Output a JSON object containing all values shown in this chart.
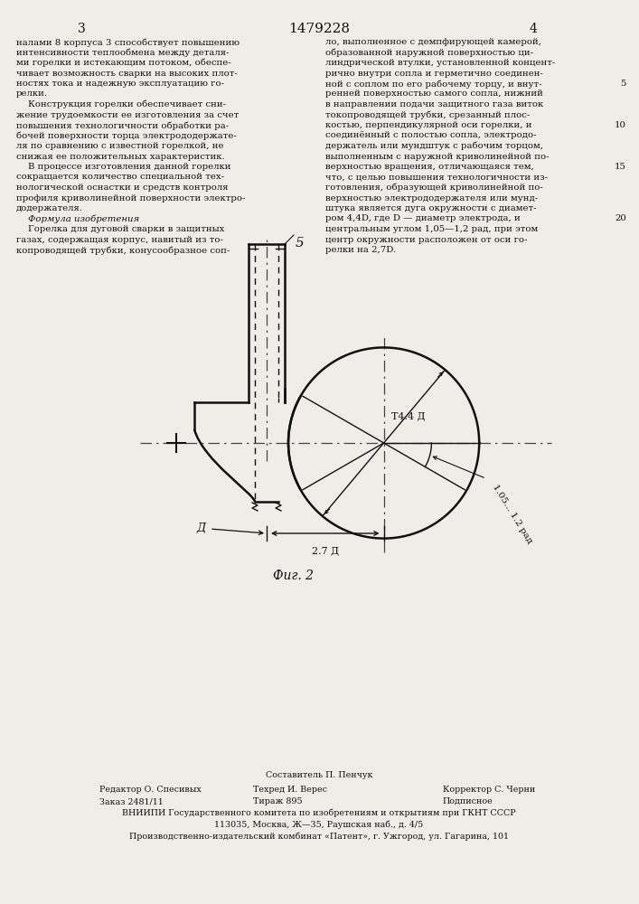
{
  "title": "1479228",
  "page_left": "3",
  "page_right": "4",
  "fig_label": "Фиг. 2",
  "label_5": "5",
  "label_D": "Д",
  "label_2_7D": "2.7 Д",
  "label_phi44D": "Т4.4 Д",
  "label_angle": "1.05... 1.2 рад",
  "background_color": "#f0ede8",
  "line_color": "#111111",
  "text_color": "#111111",
  "left_text_lines": [
    "налами 8 корпуса 3 способствует повышению",
    "интенсивности теплообмена между деталя-",
    "ми горелки и истекающим потоком, обеспе-",
    "чивает возможность сварки на высоких плот-",
    "ностях тока и надежную эксплуатацию го-",
    "релки.",
    "    Конструкция горелки обеспечивает сни-",
    "жение трудоемкости ее изготовления за счет",
    "повышения технологичности обработки ра-",
    "бочей поверхности торца электрододержате-",
    "ля по сравнению с известной горелкой, не",
    "снижая ее положительных характеристик.",
    "    В процессе изготовления данной горелки",
    "сокращается количество специальной тех-",
    "нологической оснастки и средств контроля",
    "профиля криволинейной поверхности электро-",
    "додержателя.",
    "    Формула изобретения",
    "    Горелка для дуговой сварки в защитных",
    "газах, содержащая корпус, навитый из то-",
    "копроводящей трубки, конусообразное соп-"
  ],
  "right_text_lines": [
    "ло, выполненное с демпфирующей камерой,",
    "образованной наружной поверхностью ци-",
    "линдрической втулки, установленной концент-",
    "рично внутри сопла и герметично соединен-",
    "ной с соплом по его рабочему торцу, и внут-",
    "ренней поверхностью самого сопла, нижний",
    "в направлении подачи защитного газа виток",
    "токопроводящей трубки, срезанный плос-",
    "костью, перпендикулярной оси горелки, и",
    "соединённый с полостью сопла, электродо-",
    "держатель или мундштук с рабочим торцом,",
    "выполненным с наружной криволинейной по-",
    "верхностью вращения, отличающаяся тем,",
    "что, с целью повышения технологичности из-",
    "готовления, образующей криволинейной по-",
    "верхностью электрододержателя или мунд-",
    "штука является дуга окружности с диамет-",
    "ром 4,4D, где D — диаметр электрода, и",
    "центральным углом 1,05—1,2 рад, при этом",
    "центр окружности расположен от оси го-",
    "релки на 2,7D."
  ]
}
